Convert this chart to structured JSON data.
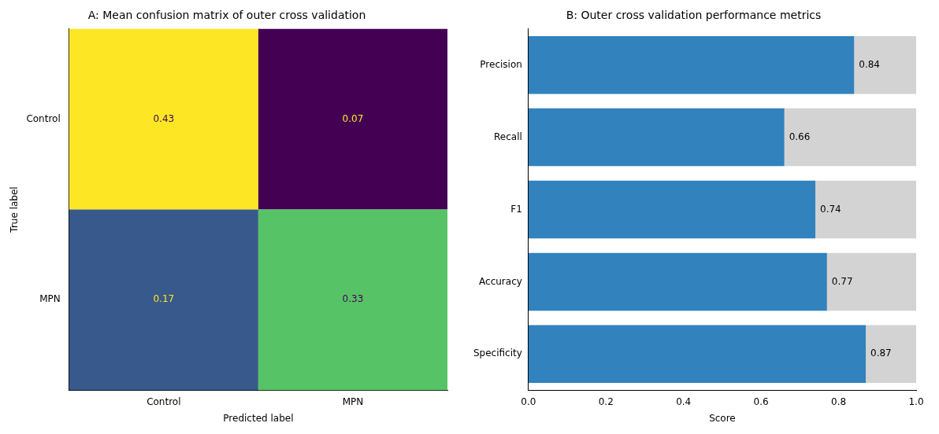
{
  "chart_data": [
    {
      "type": "heatmap",
      "title": "A: Mean confusion matrix of outer cross validation",
      "xlabel": "Predicted label",
      "ylabel": "True label",
      "categories": [
        "Control",
        "MPN"
      ],
      "y_categories": [
        "Control",
        "MPN"
      ],
      "cells": [
        [
          0.43,
          0.07
        ],
        [
          0.17,
          0.33
        ]
      ],
      "data_labels": true
    },
    {
      "type": "bar",
      "orientation": "horizontal",
      "title": "B: Outer cross validation performance metrics",
      "xlabel": "Score",
      "categories": [
        "Precision",
        "Recall",
        "F1",
        "Accuracy",
        "Specificity"
      ],
      "series": [
        {
          "color": "#3182bd",
          "values": [
            0.84,
            0.66,
            0.74,
            0.77,
            0.87
          ],
          "value_labels": [
            "0.84",
            "0.66",
            "0.74",
            "0.77",
            "0.87"
          ]
        },
        {
          "color": "#d3d3d3",
          "values": [
            0.16,
            0.34,
            0.26,
            0.23,
            0.13
          ]
        }
      ],
      "stacked": true,
      "xlim": [
        0,
        1
      ],
      "xticks": [
        {
          "value": 0,
          "label": "0.0"
        },
        {
          "value": 0.2,
          "label": "0.2"
        },
        {
          "value": 0.4,
          "label": "0.4"
        },
        {
          "value": 0.6,
          "label": "0.6"
        },
        {
          "value": 0.8,
          "label": "0.8"
        },
        {
          "value": 1,
          "label": "1.0"
        }
      ]
    }
  ]
}
